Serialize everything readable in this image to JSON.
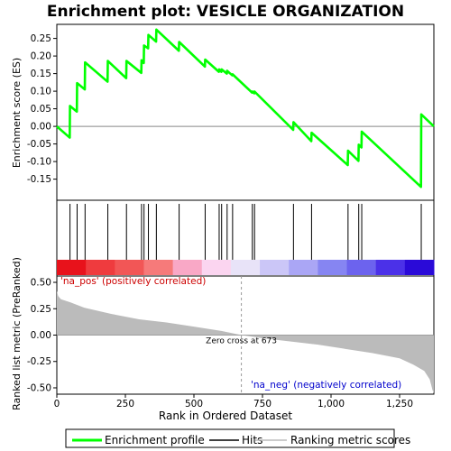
{
  "chart_data": {
    "type": "line",
    "title": "Enrichment plot: VESICLE ORGANIZATION",
    "top_panel": {
      "ylabel": "Enrichment score (ES)",
      "ylim": [
        -0.21,
        0.29
      ],
      "yticks": [
        -0.15,
        -0.1,
        -0.05,
        0.0,
        0.05,
        0.1,
        0.15,
        0.2,
        0.25
      ],
      "ytick_labels": [
        "-0.15",
        "-0.10",
        "-0.05",
        "0.00",
        "0.05",
        "0.10",
        "0.15",
        "0.20",
        "0.25"
      ],
      "series": [
        {
          "name": "Enrichment profile",
          "color": "#00ff00",
          "points": [
            [
              0,
              0.0
            ],
            [
              47,
              -0.032
            ],
            [
              48,
              0.058
            ],
            [
              73,
              0.042
            ],
            [
              74,
              0.123
            ],
            [
              102,
              0.105
            ],
            [
              103,
              0.182
            ],
            [
              185,
              0.127
            ],
            [
              186,
              0.186
            ],
            [
              253,
              0.137
            ],
            [
              254,
              0.186
            ],
            [
              308,
              0.152
            ],
            [
              309,
              0.188
            ],
            [
              317,
              0.18
            ],
            [
              318,
              0.23
            ],
            [
              333,
              0.222
            ],
            [
              334,
              0.26
            ],
            [
              362,
              0.241
            ],
            [
              363,
              0.275
            ],
            [
              445,
              0.215
            ],
            [
              446,
              0.24
            ],
            [
              540,
              0.17
            ],
            [
              541,
              0.19
            ],
            [
              591,
              0.155
            ],
            [
              592,
              0.162
            ],
            [
              600,
              0.155
            ],
            [
              601,
              0.162
            ],
            [
              620,
              0.15
            ],
            [
              621,
              0.158
            ],
            [
              640,
              0.145
            ],
            [
              641,
              0.148
            ],
            [
              712,
              0.096
            ],
            [
              713,
              0.099
            ],
            [
              720,
              0.094
            ],
            [
              721,
              0.099
            ],
            [
              862,
              -0.01
            ],
            [
              863,
              0.012
            ],
            [
              928,
              -0.042
            ],
            [
              929,
              -0.018
            ],
            [
              1061,
              -0.11
            ],
            [
              1062,
              -0.069
            ],
            [
              1100,
              -0.098
            ],
            [
              1101,
              -0.052
            ],
            [
              1111,
              -0.06
            ],
            [
              1112,
              -0.015
            ],
            [
              1328,
              -0.172
            ],
            [
              1329,
              0.034
            ],
            [
              1375,
              0.0
            ]
          ]
        }
      ],
      "hits": [
        48,
        74,
        103,
        186,
        254,
        309,
        318,
        334,
        363,
        446,
        541,
        592,
        601,
        621,
        641,
        713,
        721,
        863,
        929,
        1062,
        1101,
        1112,
        1329
      ]
    },
    "bottom_panel": {
      "ylabel": "Ranked list metric (PreRanked)",
      "xlabel": "Rank in Ordered Dataset",
      "ylim": [
        -0.56,
        0.56
      ],
      "yticks": [
        -0.5,
        -0.25,
        0.0,
        0.25,
        0.5
      ],
      "ytick_labels": [
        "-0.50",
        "-0.25",
        "0.00",
        "0.25",
        "0.50"
      ],
      "xlim": [
        0,
        1375
      ],
      "xticks": [
        0,
        250,
        500,
        750,
        1000,
        1250
      ],
      "xtick_labels": [
        "0",
        "250",
        "500",
        "750",
        "1,000",
        "1,250"
      ],
      "metric_profile": [
        [
          0,
          0.42
        ],
        [
          5,
          0.37
        ],
        [
          15,
          0.34
        ],
        [
          50,
          0.31
        ],
        [
          100,
          0.26
        ],
        [
          200,
          0.2
        ],
        [
          300,
          0.15
        ],
        [
          400,
          0.12
        ],
        [
          500,
          0.08
        ],
        [
          600,
          0.04
        ],
        [
          673,
          0.0
        ],
        [
          750,
          -0.03
        ],
        [
          850,
          -0.06
        ],
        [
          950,
          -0.09
        ],
        [
          1050,
          -0.13
        ],
        [
          1150,
          -0.17
        ],
        [
          1250,
          -0.22
        ],
        [
          1300,
          -0.28
        ],
        [
          1340,
          -0.34
        ],
        [
          1360,
          -0.42
        ],
        [
          1370,
          -0.52
        ],
        [
          1375,
          -0.55
        ]
      ],
      "zero_cross_rank": 673,
      "zero_cross_label": "Zero cross at 673",
      "pos_label": "'na_pos' (positively correlated)",
      "neg_label": "'na_neg' (negatively correlated)",
      "pos_label_color": "#cc0000",
      "neg_label_color": "#0000cc"
    },
    "color_bar": [
      "#e8121b",
      "#ef3b3e",
      "#f25656",
      "#f67a7a",
      "#f9a8c6",
      "#fbd5f0",
      "#e8e3f8",
      "#cbc6f7",
      "#aaa6f5",
      "#8685f2",
      "#6c63ee",
      "#4b31e8",
      "#2a0ad8"
    ],
    "legend": {
      "placement": "bottom",
      "items": [
        {
          "label": "Enrichment profile",
          "color": "#00ff00"
        },
        {
          "label": "Hits",
          "color": "#000000"
        },
        {
          "label": "Ranking metric scores",
          "color": "#bbbbbb"
        }
      ]
    }
  }
}
